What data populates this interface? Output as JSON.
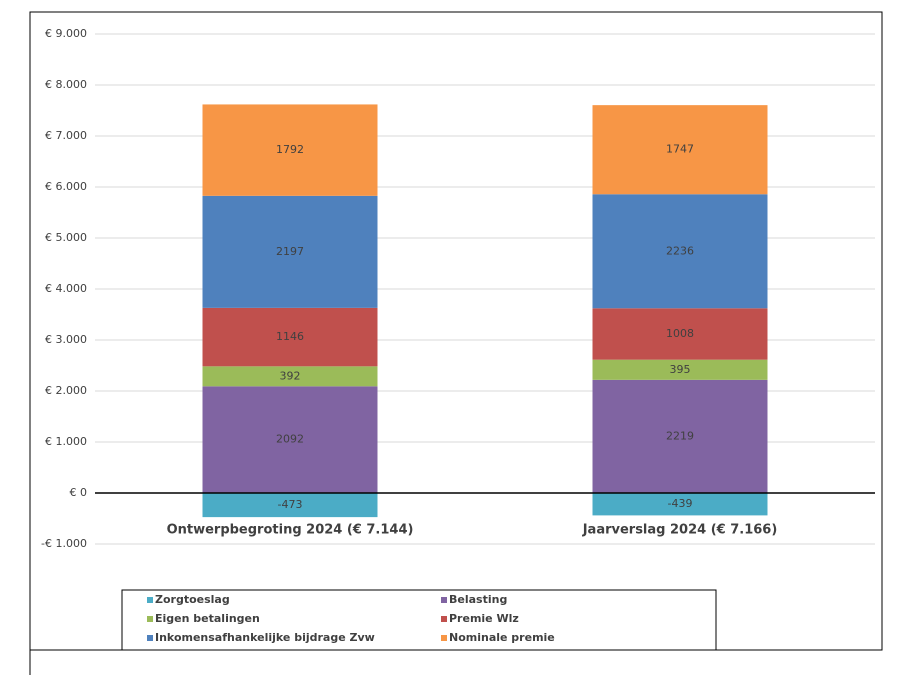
{
  "chart_data": {
    "type": "stacked-bar",
    "categories": [
      "Ontwerpbegroting 2024 (€ 7.144)",
      "Jaarverslag 2024 (€ 7.166)"
    ],
    "series": [
      {
        "name": "Zorgtoeslag",
        "color": "#4bacc6",
        "values": [
          -473,
          -439
        ]
      },
      {
        "name": "Belasting",
        "color": "#8064a2",
        "values": [
          2092,
          2219
        ]
      },
      {
        "name": "Eigen betalingen",
        "color": "#9bbb59",
        "values": [
          392,
          395
        ]
      },
      {
        "name": "Premie Wlz",
        "color": "#c0504d",
        "values": [
          1146,
          1008
        ]
      },
      {
        "name": "Inkomensafhankelijke bijdrage Zvw",
        "color": "#4f81bd",
        "values": [
          2197,
          2236
        ]
      },
      {
        "name": "Nominale premie",
        "color": "#f79646",
        "values": [
          1792,
          1747
        ]
      }
    ],
    "ylim": [
      -1000,
      9000
    ],
    "yticks": [
      {
        "value": -1000,
        "label": "-€ 1.000"
      },
      {
        "value": 0,
        "label": "€ 0"
      },
      {
        "value": 1000,
        "label": "€ 1.000"
      },
      {
        "value": 2000,
        "label": "€ 2.000"
      },
      {
        "value": 3000,
        "label": "€ 3.000"
      },
      {
        "value": 4000,
        "label": "€ 4.000"
      },
      {
        "value": 5000,
        "label": "€ 5.000"
      },
      {
        "value": 6000,
        "label": "€ 6.000"
      },
      {
        "value": 7000,
        "label": "€ 7.000"
      },
      {
        "value": 8000,
        "label": "€ 8.000"
      },
      {
        "value": 9000,
        "label": "€ 9.000"
      }
    ],
    "grid": true,
    "legend": "bottom"
  }
}
